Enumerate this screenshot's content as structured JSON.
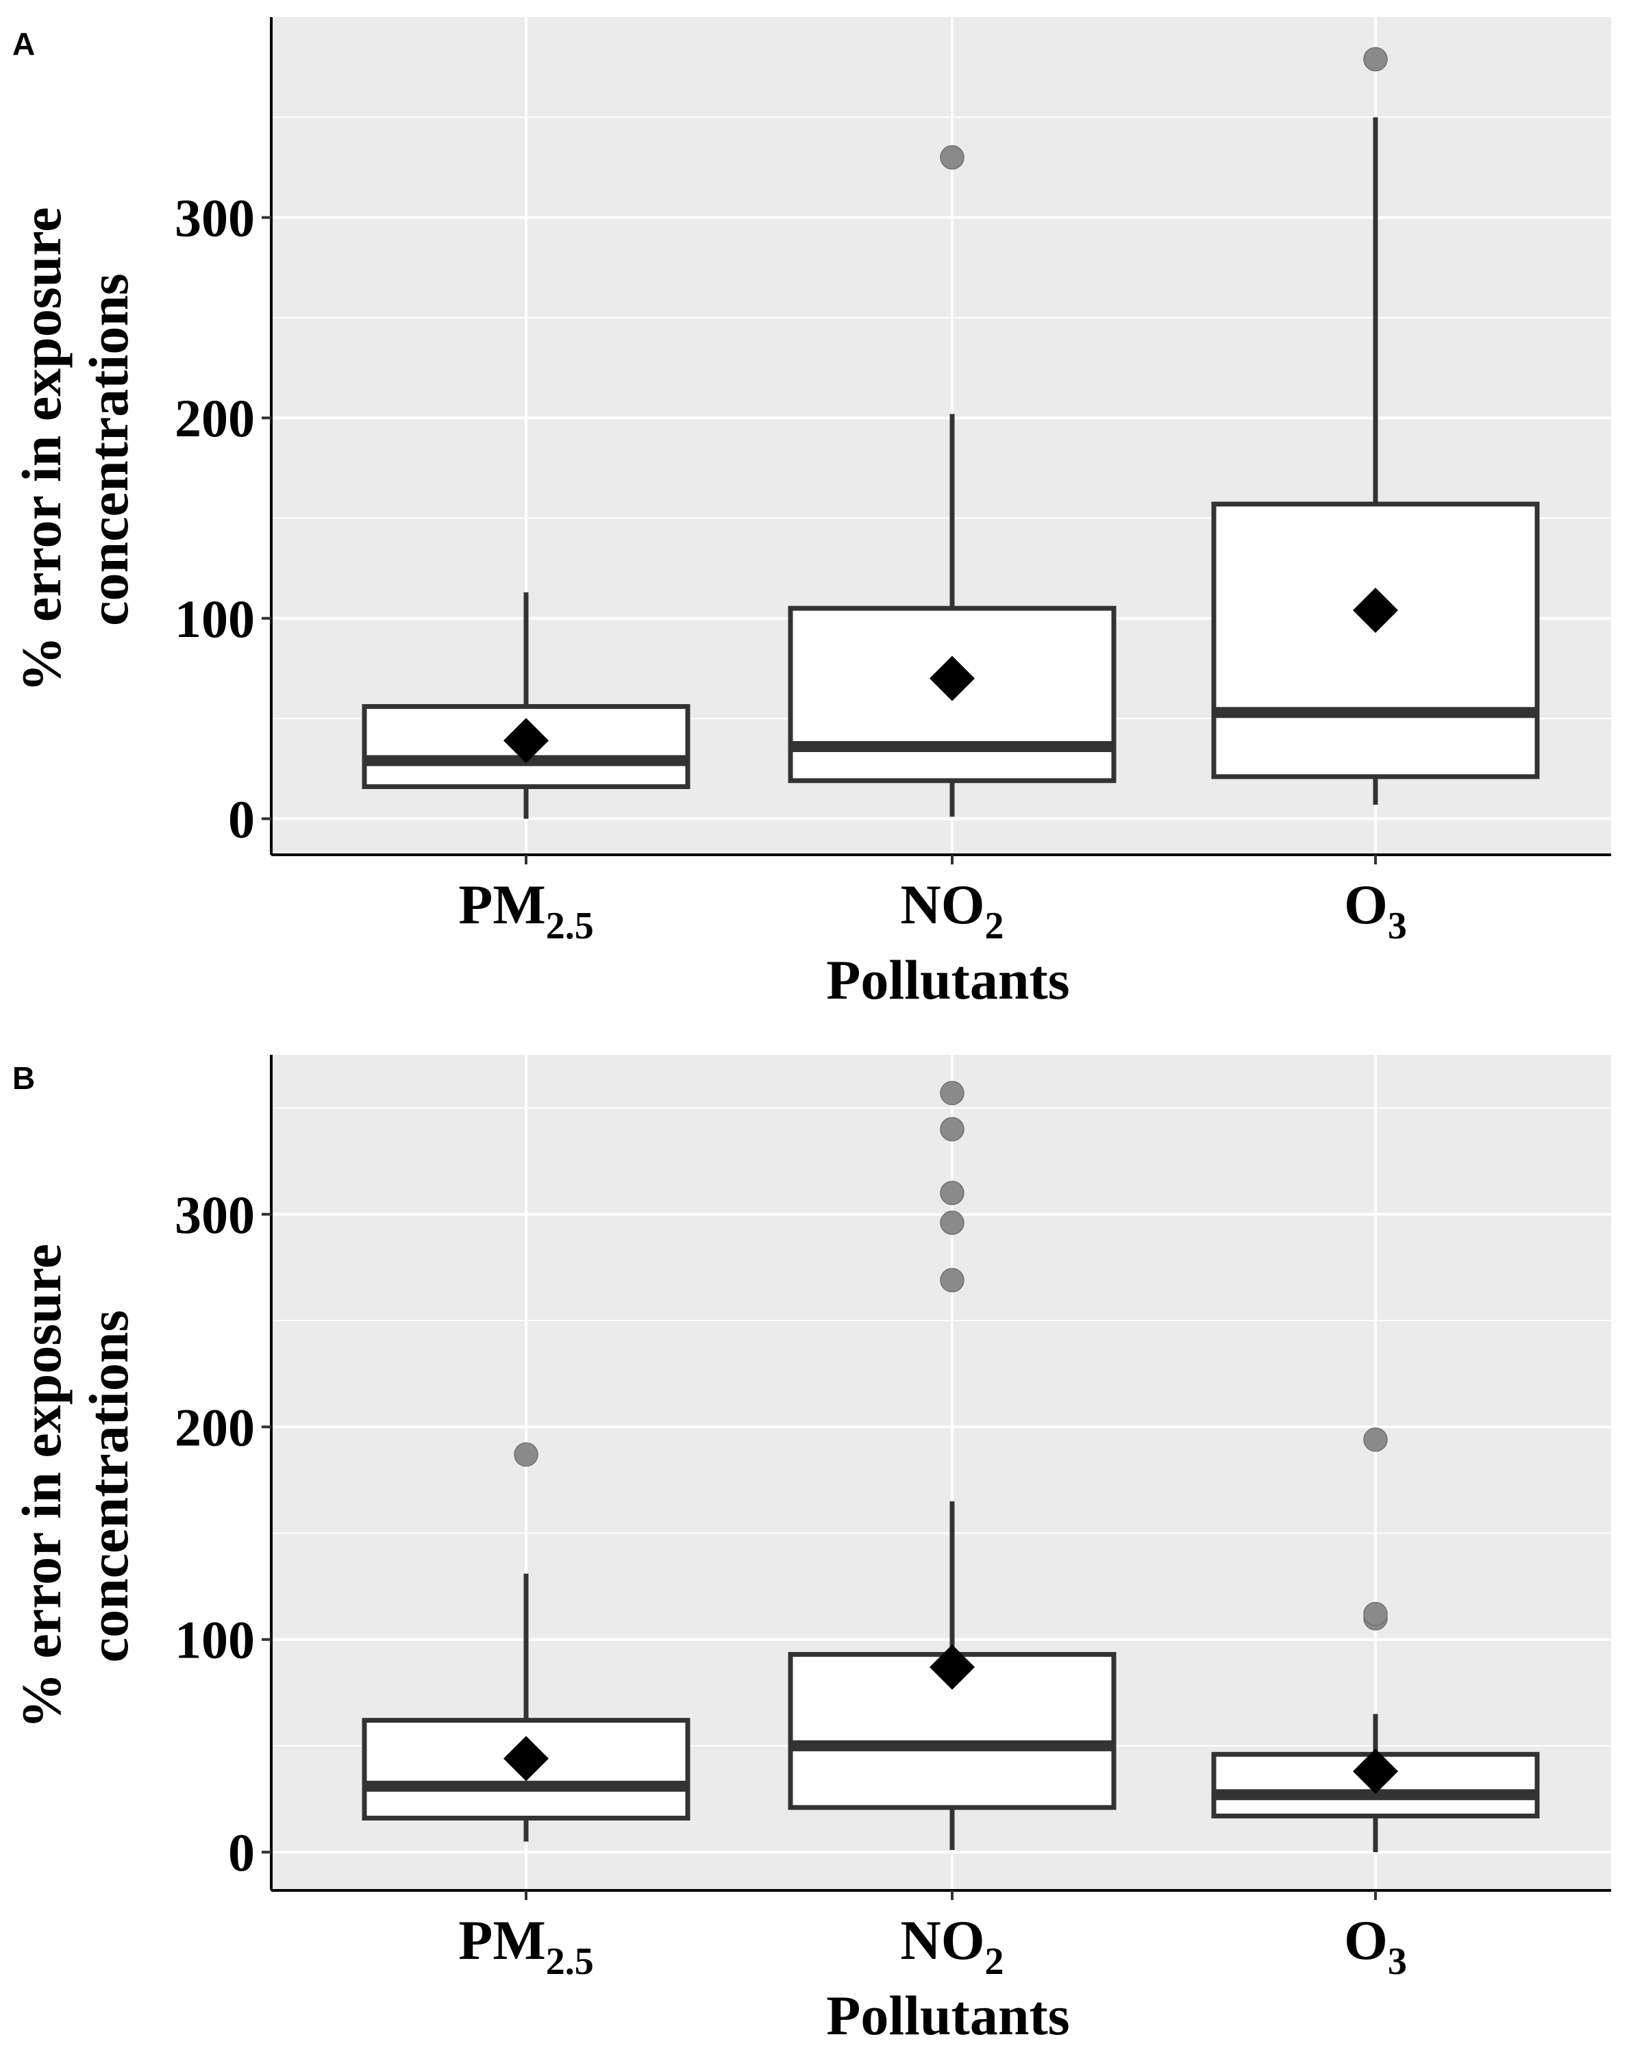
{
  "colors": {
    "panel_bg": "#ebebeb",
    "grid": "#ffffff",
    "box_stroke": "#333333",
    "box_fill": "#ffffff",
    "outlier": "#8a8a8a",
    "mean_marker": "#000000"
  },
  "chart_data": [
    {
      "type": "boxplot",
      "panel": "A",
      "xlabel": "Pollutants",
      "ylabel_lines": [
        "% error in exposure",
        "concentrations"
      ],
      "ylim": [
        -18,
        400
      ],
      "yticks": [
        0,
        100,
        200,
        300
      ],
      "categories": [
        {
          "main": "PM",
          "sub": "2.5"
        },
        {
          "main": "NO",
          "sub": "2"
        },
        {
          "main": "O",
          "sub": "3"
        }
      ],
      "series": [
        {
          "name": "PM2.5",
          "whisker_low": 0,
          "q1": 16,
          "median": 29,
          "q3": 56,
          "whisker_high": 113,
          "mean": 39,
          "outliers": []
        },
        {
          "name": "NO2",
          "whisker_low": 1,
          "q1": 19,
          "median": 36,
          "q3": 105,
          "whisker_high": 202,
          "mean": 70,
          "outliers": [
            330
          ]
        },
        {
          "name": "O3",
          "whisker_low": 7,
          "q1": 21,
          "median": 53,
          "q3": 157,
          "whisker_high": 350,
          "mean": 104,
          "outliers": [
            379
          ]
        }
      ]
    },
    {
      "type": "boxplot",
      "panel": "B",
      "xlabel": "Pollutants",
      "ylabel_lines": [
        "% error in exposure",
        "concentrations"
      ],
      "ylim": [
        -18,
        375
      ],
      "yticks": [
        0,
        100,
        200,
        300
      ],
      "categories": [
        {
          "main": "PM",
          "sub": "2.5"
        },
        {
          "main": "NO",
          "sub": "2"
        },
        {
          "main": "O",
          "sub": "3"
        }
      ],
      "series": [
        {
          "name": "PM2.5",
          "whisker_low": 5,
          "q1": 16,
          "median": 31,
          "q3": 62,
          "whisker_high": 131,
          "mean": 44,
          "outliers": [
            187
          ]
        },
        {
          "name": "NO2",
          "whisker_low": 1,
          "q1": 21,
          "median": 50,
          "q3": 93,
          "whisker_high": 165,
          "mean": 87,
          "outliers": [
            269,
            296,
            310,
            340,
            357
          ]
        },
        {
          "name": "O3",
          "whisker_low": 0,
          "q1": 17,
          "median": 27,
          "q3": 46,
          "whisker_high": 65,
          "mean": 38,
          "outliers": [
            110,
            112,
            194
          ]
        }
      ]
    }
  ]
}
